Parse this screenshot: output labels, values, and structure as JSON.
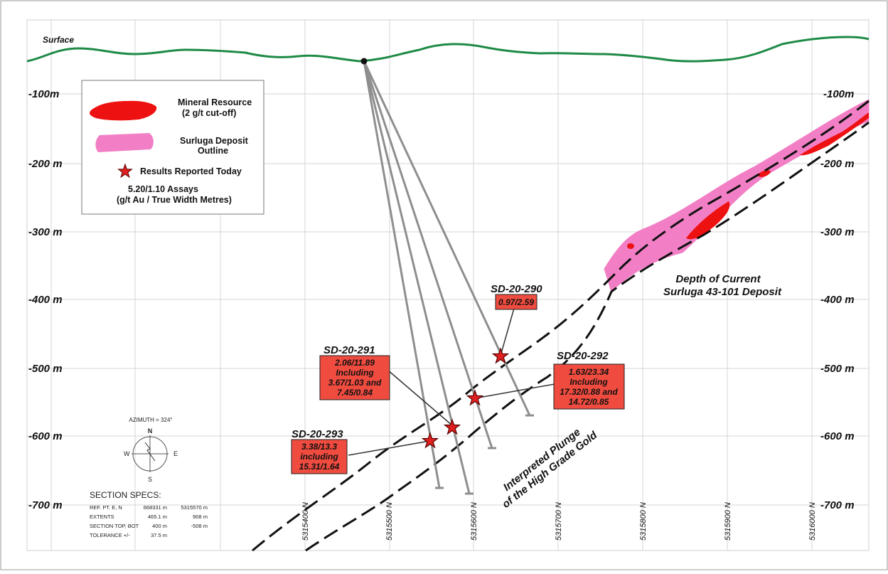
{
  "surface_label": "Surface",
  "depth_labels_left": [
    "-100m",
    "-200 m",
    "-300 m",
    "-400 m",
    "-500 m",
    "-600 m",
    "-700 m"
  ],
  "depth_labels_right": [
    "-100m",
    "-200 m",
    "-300 m",
    "-400 m",
    "-500 m",
    "-600 m",
    "-700 m"
  ],
  "northing_labels": [
    "5315400 N",
    "5315500 N",
    "5315600 N",
    "5315700 N",
    "5315800 N",
    "5315900 N",
    "5316000 N"
  ],
  "legend": {
    "mineral_resource": "Mineral Resource",
    "cutoff": "(2 g/t cut-off)",
    "deposit": "Surluga Deposit",
    "outline": "Outline",
    "results": "Results Reported Today",
    "assays": "5.20/1.10 Assays",
    "assay_units": "(g/t Au / True Width Metres)"
  },
  "holes": {
    "sd290": {
      "name": "SD-20-290",
      "lines": [
        "0.97/2.59"
      ]
    },
    "sd291": {
      "name": "SD-20-291",
      "lines": [
        "2.06/11.89",
        "Including",
        "3.67/1.03 and",
        "7.45/0.84"
      ]
    },
    "sd292": {
      "name": "SD-20-292",
      "lines": [
        "1.63/23.34",
        "Including",
        "17.32/0.88 and",
        "14.72/0.85"
      ]
    },
    "sd293": {
      "name": "SD-20-293",
      "lines": [
        "3.38/13.3",
        "including",
        "15.31/1.64"
      ]
    }
  },
  "annotations": {
    "depth_current_1": "Depth of Current",
    "depth_current_2": "Surluga 43-101 Deposit",
    "plunge_1": "Interpreted Plunge",
    "plunge_2": "of the High Grade Gold"
  },
  "compass": {
    "azimuth": "AZIMUTH = 324°",
    "n": "N",
    "s": "S",
    "e": "E",
    "w": "W"
  },
  "specs": {
    "title": "SECTION SPECS:",
    "rows": [
      {
        "label": "REF. PT.  E, N",
        "v1": "668331 m",
        "v2": "5315570 m"
      },
      {
        "label": "EXTENTS",
        "v1": "465.1 m",
        "v2": "908 m"
      },
      {
        "label": "SECTION TOP, BOT",
        "v1": "400 m",
        "v2": "-508 m"
      },
      {
        "label": "TOLERANCE  +/-",
        "v1": "37.5 m",
        "v2": ""
      }
    ]
  },
  "colors": {
    "surface": "#1e8a46",
    "deposit": "#f27fc6",
    "mineral": "#ee1111",
    "box": "#ef4b3f",
    "drill": "#8e8e8e"
  }
}
